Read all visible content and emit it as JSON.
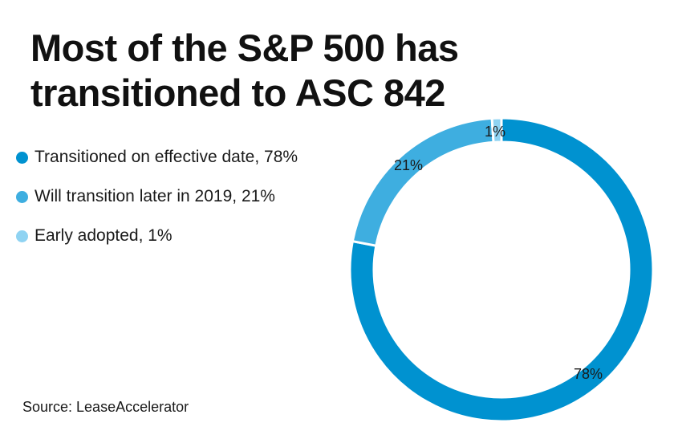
{
  "title": "Most of the S&P 500 has transitioned to ASC 842",
  "source": "Source: LeaseAccelerator",
  "chart_data": {
    "type": "pie",
    "title": "Most of the S&P 500 has transitioned to ASC 842",
    "categories": [
      "Transitioned on effective date",
      "Will transition later in 2019",
      "Early adopted"
    ],
    "values": [
      78,
      21,
      1
    ],
    "unit": "%",
    "legend": [
      "Transitioned on effective date, 78%",
      "Will transition later in 2019, 21%",
      "Early adopted, 1%"
    ],
    "data_labels": [
      "78%",
      "21%",
      "1%"
    ],
    "colors": [
      "#0092d0",
      "#3eaee0",
      "#8fd3f2"
    ],
    "legend_position": "left"
  }
}
